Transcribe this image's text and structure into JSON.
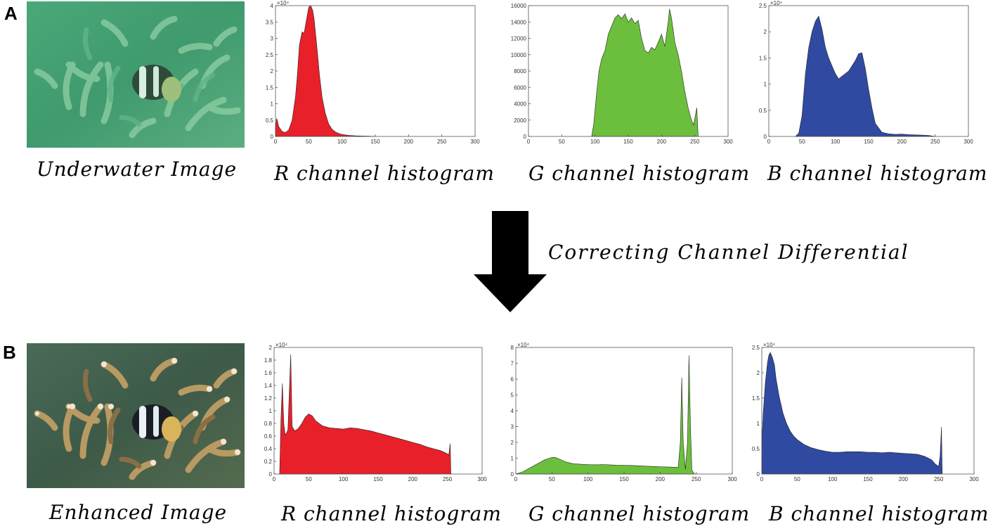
{
  "panels": [
    {
      "letter": "A",
      "image_caption": "Underwater Image"
    },
    {
      "letter": "B",
      "image_caption": "Enhanced Image"
    }
  ],
  "flow": {
    "label": "Correcting  Channel  Differential"
  },
  "colors": {
    "red": "#e8202a",
    "green": "#6cbf3c",
    "blue": "#2f4aa0"
  },
  "chart_data": [
    {
      "id": "A-R",
      "type": "area",
      "title": "R channel histogram",
      "color": "#e8202a",
      "xlim": [
        0,
        300
      ],
      "xticks": [
        0,
        50,
        100,
        150,
        200,
        250,
        300
      ],
      "ylim": [
        0,
        40000
      ],
      "ytick_labels": [
        "0",
        "0.5",
        "1",
        "1.5",
        "2",
        "2.5",
        "3",
        "3.5",
        "4"
      ],
      "exponent": "×10⁴",
      "x": [
        0,
        2,
        5,
        10,
        15,
        20,
        25,
        30,
        33,
        36,
        40,
        43,
        46,
        50,
        53,
        56,
        58,
        60,
        63,
        66,
        70,
        75,
        80,
        85,
        90,
        95,
        100,
        110,
        120,
        130,
        140,
        150
      ],
      "y": [
        3000,
        5500,
        3000,
        1500,
        1200,
        2000,
        5000,
        12000,
        19000,
        28000,
        32000,
        31500,
        35000,
        39500,
        40000,
        38500,
        36000,
        32000,
        26000,
        19000,
        12000,
        7000,
        3800,
        2200,
        1400,
        900,
        600,
        350,
        200,
        120,
        80,
        0
      ]
    },
    {
      "id": "A-G",
      "type": "area",
      "title": "G channel histogram",
      "color": "#6cbf3c",
      "xlim": [
        0,
        300
      ],
      "xticks": [
        0,
        50,
        100,
        150,
        200,
        250,
        300
      ],
      "ylim": [
        0,
        16000
      ],
      "ytick_labels": [
        "0",
        "2000",
        "4000",
        "6000",
        "8000",
        "10000",
        "12000",
        "14000",
        "16000"
      ],
      "exponent": "",
      "x": [
        95,
        98,
        102,
        106,
        110,
        115,
        120,
        125,
        130,
        135,
        140,
        145,
        150,
        155,
        160,
        165,
        170,
        175,
        180,
        185,
        190,
        195,
        200,
        205,
        210,
        212,
        215,
        220,
        225,
        230,
        235,
        240,
        245,
        248,
        250,
        253,
        255
      ],
      "y": [
        0,
        1500,
        5000,
        8000,
        9500,
        10500,
        12500,
        13500,
        14500,
        14900,
        14400,
        15000,
        14000,
        14500,
        13800,
        14200,
        12000,
        10500,
        10200,
        10900,
        10600,
        11500,
        12500,
        11000,
        14000,
        15600,
        14500,
        11500,
        10000,
        8000,
        5500,
        3500,
        2000,
        1400,
        2200,
        3500,
        0
      ]
    },
    {
      "id": "A-B",
      "type": "area",
      "title": "B channel histogram",
      "color": "#2f4aa0",
      "xlim": [
        0,
        300
      ],
      "xticks": [
        0,
        50,
        100,
        150,
        200,
        250,
        300
      ],
      "ylim": [
        0,
        25000
      ],
      "ytick_labels": [
        "0",
        "0.5",
        "1",
        "1.5",
        "2",
        "2.5"
      ],
      "exponent": "×10⁴",
      "x": [
        40,
        45,
        50,
        55,
        60,
        65,
        70,
        75,
        80,
        85,
        90,
        95,
        100,
        105,
        110,
        115,
        120,
        125,
        130,
        135,
        140,
        145,
        150,
        155,
        160,
        170,
        180,
        190,
        200,
        210,
        220,
        230,
        240,
        250
      ],
      "y": [
        0,
        600,
        4000,
        12000,
        17000,
        20000,
        22000,
        23000,
        20500,
        17000,
        15000,
        13500,
        12000,
        11000,
        11500,
        12000,
        12500,
        13500,
        14500,
        15800,
        16000,
        13000,
        9000,
        5500,
        2500,
        800,
        500,
        400,
        450,
        350,
        300,
        250,
        200,
        0
      ]
    },
    {
      "id": "B-R",
      "type": "area",
      "title": "R channel histogram",
      "color": "#e8202a",
      "xlim": [
        0,
        300
      ],
      "xticks": [
        0,
        50,
        100,
        150,
        200,
        250,
        300
      ],
      "ylim": [
        0,
        20000
      ],
      "ytick_labels": [
        "0",
        "0.2",
        "0.4",
        "0.6",
        "0.8",
        "1",
        "1.2",
        "1.4",
        "1.6",
        "1.8",
        "2"
      ],
      "exponent": "×10⁴",
      "x": [
        8,
        10,
        12,
        14,
        16,
        18,
        20,
        22,
        24,
        26,
        30,
        35,
        40,
        45,
        50,
        55,
        60,
        70,
        80,
        90,
        100,
        110,
        120,
        130,
        140,
        150,
        160,
        170,
        180,
        190,
        200,
        210,
        220,
        230,
        240,
        250,
        252,
        254,
        255
      ],
      "y": [
        0,
        9000,
        14300,
        8000,
        6200,
        6500,
        7000,
        13000,
        18900,
        7500,
        6800,
        7200,
        8000,
        9000,
        9500,
        9200,
        8400,
        7600,
        7300,
        7200,
        7100,
        7300,
        7200,
        7000,
        6800,
        6500,
        6200,
        5900,
        5600,
        5300,
        5000,
        4700,
        4300,
        4000,
        3700,
        3200,
        3000,
        4800,
        0
      ]
    },
    {
      "id": "B-G",
      "type": "area",
      "title": "G channel histogram",
      "color": "#6cbf3c",
      "xlim": [
        0,
        300
      ],
      "xticks": [
        0,
        50,
        100,
        150,
        200,
        250,
        300
      ],
      "ylim": [
        0,
        80000
      ],
      "ytick_labels": [
        "0",
        "1",
        "2",
        "3",
        "4",
        "5",
        "6",
        "7",
        "8"
      ],
      "exponent": "×10⁴",
      "x": [
        0,
        10,
        20,
        30,
        40,
        50,
        55,
        60,
        70,
        80,
        90,
        100,
        110,
        120,
        130,
        140,
        150,
        160,
        170,
        180,
        190,
        200,
        210,
        220,
        225,
        228,
        230,
        232,
        235,
        238,
        240,
        242,
        244,
        246,
        248
      ],
      "y": [
        0,
        1500,
        4000,
        6500,
        9000,
        10500,
        10500,
        9500,
        7500,
        6500,
        6200,
        6000,
        5800,
        6000,
        5800,
        5600,
        5500,
        5400,
        5200,
        5000,
        4800,
        4600,
        4500,
        4300,
        4200,
        20000,
        61000,
        20000,
        3000,
        20000,
        75000,
        30000,
        2500,
        1000,
        0
      ]
    },
    {
      "id": "B-B",
      "type": "area",
      "title": "B channel histogram",
      "color": "#2f4aa0",
      "xlim": [
        0,
        300
      ],
      "xticks": [
        0,
        50,
        100,
        150,
        200,
        250,
        300
      ],
      "ylim": [
        0,
        25000
      ],
      "ytick_labels": [
        "0",
        "0.5",
        "1",
        "1.5",
        "2",
        "2.5"
      ],
      "exponent": "×10⁴",
      "x": [
        0,
        2,
        5,
        8,
        10,
        12,
        15,
        18,
        20,
        25,
        30,
        35,
        40,
        45,
        50,
        60,
        70,
        80,
        90,
        100,
        110,
        120,
        130,
        140,
        150,
        160,
        170,
        180,
        190,
        200,
        210,
        220,
        230,
        240,
        245,
        250,
        252,
        254,
        255
      ],
      "y": [
        6000,
        12000,
        18000,
        22000,
        23500,
        24000,
        23000,
        21500,
        19000,
        15000,
        12000,
        10000,
        8500,
        7500,
        6800,
        5800,
        5200,
        4800,
        4500,
        4300,
        4300,
        4400,
        4400,
        4400,
        4300,
        4300,
        4200,
        4300,
        4200,
        4100,
        4000,
        3900,
        3500,
        2800,
        2000,
        1500,
        3500,
        9300,
        0
      ]
    }
  ]
}
